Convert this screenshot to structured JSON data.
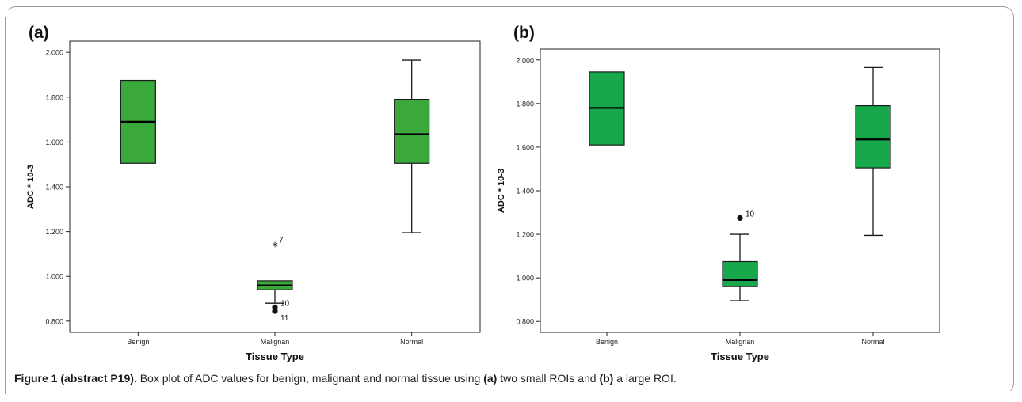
{
  "chart_data": [
    {
      "type": "boxplot",
      "panel_label": "(a)",
      "xlabel": "Tissue Type",
      "ylabel": "ADC * 10-3",
      "ylim": [
        0.75,
        2.05
      ],
      "yticks": [
        "0.800",
        "1.000",
        "1.200",
        "1.400",
        "1.600",
        "1.800",
        "2.000"
      ],
      "categories": [
        "Benign",
        "Malignan",
        "Normal"
      ],
      "boxes": [
        {
          "category": "Benign",
          "min": 1.505,
          "q1": 1.505,
          "median": 1.69,
          "q3": 1.875,
          "max": 1.875
        },
        {
          "category": "Malignan",
          "min": 0.88,
          "q1": 0.94,
          "median": 0.96,
          "q3": 0.98,
          "max": 0.98
        },
        {
          "category": "Normal",
          "min": 1.195,
          "q1": 1.505,
          "median": 1.635,
          "q3": 1.79,
          "max": 1.965
        }
      ],
      "outliers": [
        {
          "category": "Malignan",
          "value": 1.14,
          "label": "7",
          "marker": "star"
        },
        {
          "category": "Malignan",
          "value": 0.862,
          "label": "10",
          "marker": "circle"
        },
        {
          "category": "Malignan",
          "value": 0.845,
          "label": "11",
          "marker": "circle"
        }
      ]
    },
    {
      "type": "boxplot",
      "panel_label": "(b)",
      "xlabel": "Tissue Type",
      "ylabel": "ADC * 10-3",
      "ylim": [
        0.75,
        2.05
      ],
      "yticks": [
        "0.800",
        "1.000",
        "1.200",
        "1.400",
        "1.600",
        "1.800",
        "2.000"
      ],
      "categories": [
        "Benign",
        "Malignan",
        "Normal"
      ],
      "boxes": [
        {
          "category": "Benign",
          "min": 1.61,
          "q1": 1.61,
          "median": 1.78,
          "q3": 1.945,
          "max": 1.945
        },
        {
          "category": "Malignan",
          "min": 0.895,
          "q1": 0.96,
          "median": 0.99,
          "q3": 1.075,
          "max": 1.2
        },
        {
          "category": "Normal",
          "min": 1.195,
          "q1": 1.505,
          "median": 1.635,
          "q3": 1.79,
          "max": 1.965
        }
      ],
      "outliers": [
        {
          "category": "Malignan",
          "value": 1.275,
          "label": "10",
          "marker": "circle"
        }
      ]
    }
  ],
  "colors": {
    "box_fill_a": "#3aa83a",
    "box_fill_b": "#16a84a",
    "box_stroke": "#1a1a1a"
  },
  "caption": {
    "lead": "Figure 1 (abstract P19).",
    "t1": " Box plot of ADC values for benign, malignant and normal tissue using ",
    "a": "(a)",
    "t2": " two small ROIs and ",
    "b": "(b)",
    "t3": " a large ROI."
  }
}
